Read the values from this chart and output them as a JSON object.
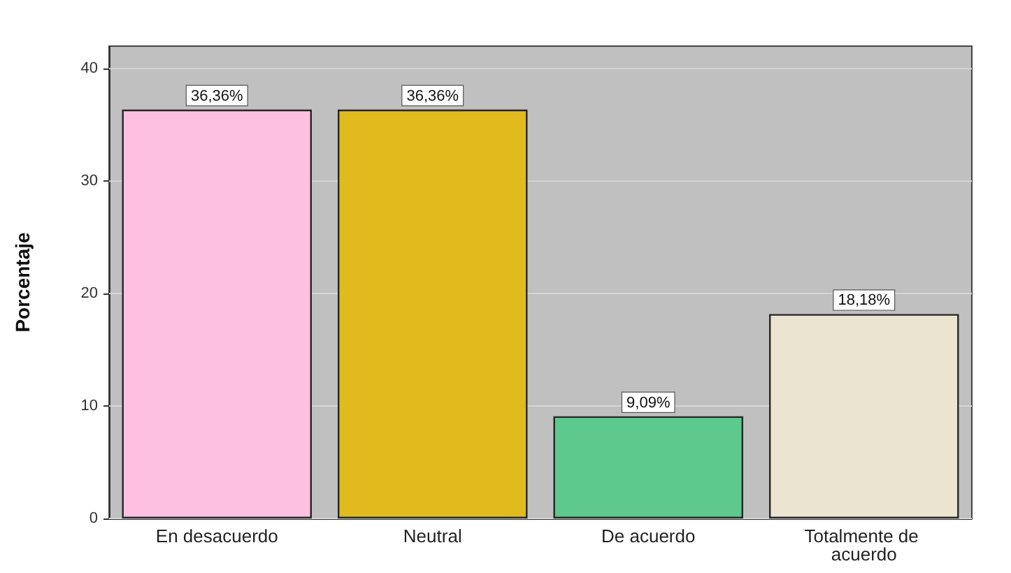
{
  "chart_data": {
    "type": "bar",
    "ylabel": "Porcentaje",
    "categories": [
      "En desacuerdo",
      "Neutral",
      "De acuerdo",
      "Totalmente de acuerdo"
    ],
    "values": [
      36.36,
      36.36,
      9.09,
      18.18
    ],
    "colors": [
      "#fdc0e0",
      "#e1ba1e",
      "#5dc98d",
      "#ebe4d0"
    ],
    "value_labels": [
      "36,36%",
      "36,36%",
      "9,09%",
      "18,18%"
    ],
    "ylim": [
      0,
      42
    ],
    "yticks": [
      0,
      10,
      20,
      30,
      40
    ],
    "grid": "y"
  }
}
